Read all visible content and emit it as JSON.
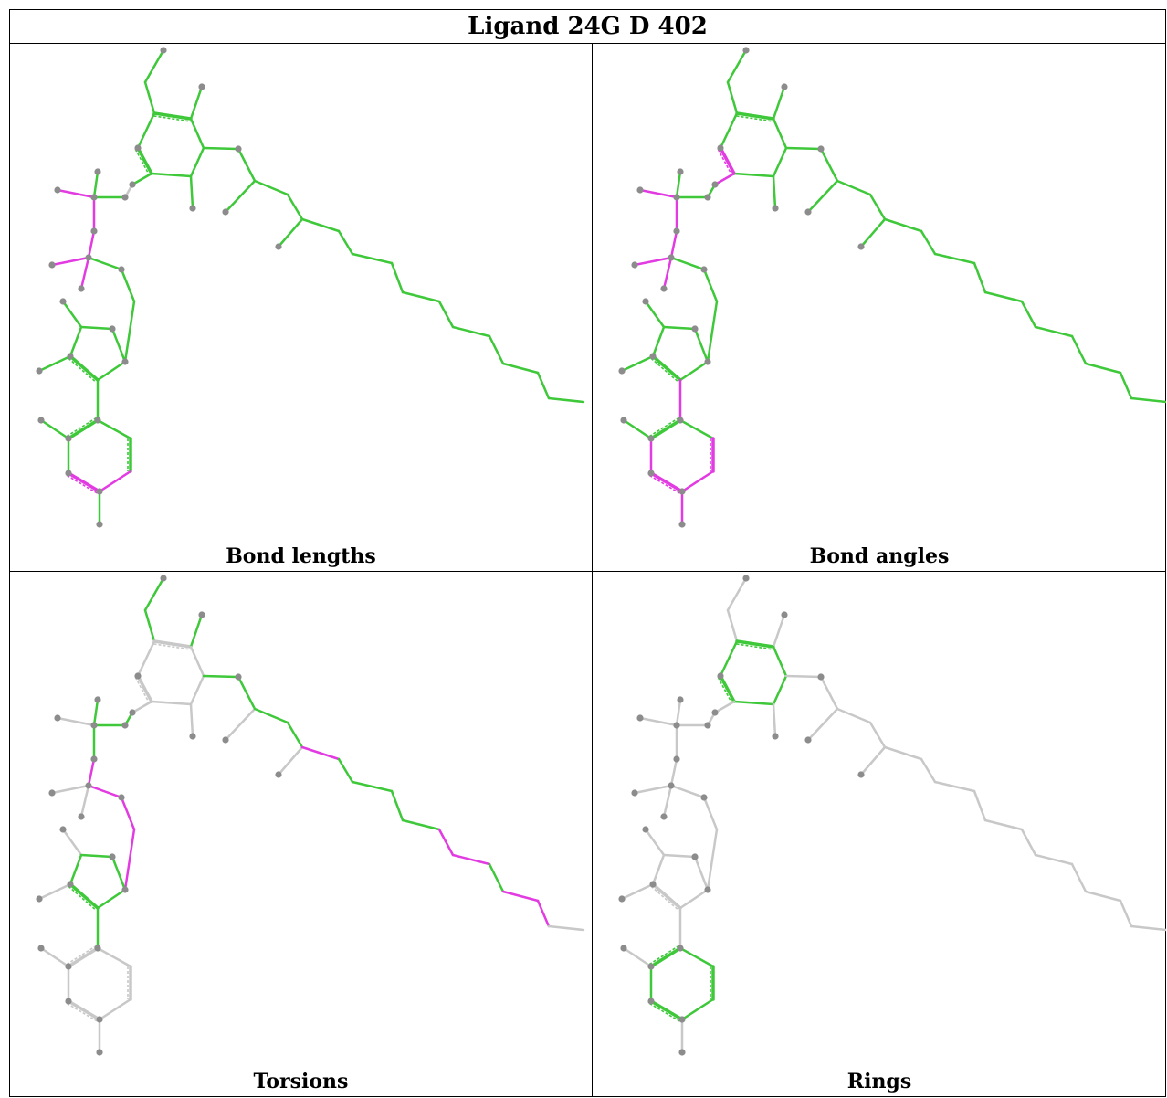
{
  "title": "Ligand 24G D 402",
  "colors": {
    "ok": "#3ec83a",
    "outlier": "#e23be2",
    "neutral": "#c8c8c8",
    "atom": "#8c8c8c"
  },
  "panels": [
    {
      "caption": "Bond lengths"
    },
    {
      "caption": "Bond angles"
    },
    {
      "caption": "Torsions"
    },
    {
      "caption": "Rings"
    }
  ]
}
